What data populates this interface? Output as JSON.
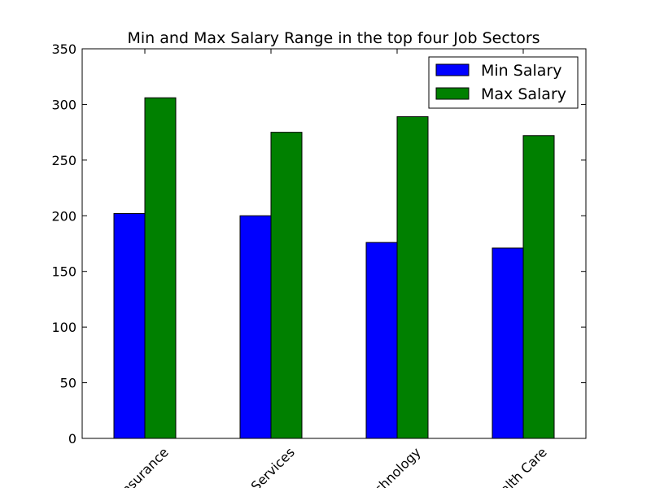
{
  "chart_data": {
    "type": "bar",
    "title": "Min and Max Salary Range in the top four Job Sectors",
    "xlabel": "",
    "ylabel": "",
    "categories": [
      "Insurance",
      "Services",
      "Technology",
      "Health Care"
    ],
    "series": [
      {
        "name": "Min Salary",
        "color": "#0000ff",
        "values": [
          202,
          200,
          176,
          171
        ]
      },
      {
        "name": "Max Salary",
        "color": "#008000",
        "values": [
          306,
          275,
          289,
          272
        ]
      }
    ],
    "ylim": [
      0,
      350
    ],
    "yticks": [
      0,
      50,
      100,
      150,
      200,
      250,
      300,
      350
    ],
    "legend_position": "top-right",
    "grid": false
  }
}
